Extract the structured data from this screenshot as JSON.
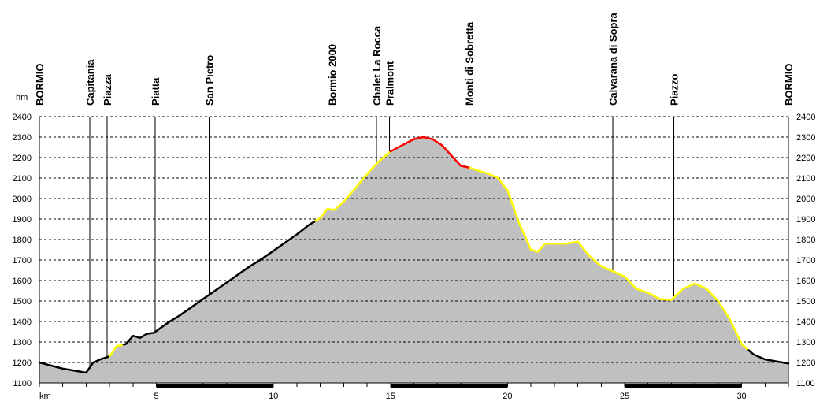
{
  "chart_data": {
    "type": "area",
    "ylabel": "hm",
    "xlabel": "km",
    "ylim": [
      1100,
      2400
    ],
    "xlim": [
      0,
      32
    ],
    "y_ticks": [
      1100,
      1200,
      1300,
      1400,
      1500,
      1600,
      1700,
      1800,
      1900,
      2000,
      2100,
      2200,
      2300,
      2400
    ],
    "x_ticks": [
      5,
      10,
      15,
      20,
      25,
      30
    ],
    "grid": true,
    "colors": {
      "area": "#c0c0c0",
      "road": "#000000",
      "easy": "#ffff00",
      "difficult": "#ff0000",
      "gridline": "#000000"
    },
    "profile": {
      "x": [
        0,
        0.5,
        1,
        1.5,
        2,
        2.3,
        2.6,
        3.0,
        3.3,
        3.7,
        4.0,
        4.3,
        4.6,
        4.9,
        5.2,
        5.5,
        6.0,
        6.5,
        7.0,
        7.5,
        8.0,
        8.5,
        9.0,
        9.5,
        10.0,
        10.5,
        11.0,
        11.5,
        12.0,
        12.3,
        12.6,
        13.0,
        13.5,
        14.0,
        14.5,
        15.0,
        15.5,
        16.0,
        16.4,
        16.8,
        17.2,
        17.6,
        18.0,
        18.4,
        18.8,
        19.2,
        19.6,
        20.0,
        20.5,
        21.0,
        21.3,
        21.6,
        22.0,
        22.5,
        23.0,
        23.5,
        24.0,
        24.5,
        25.0,
        25.5,
        26.0,
        26.5,
        27.0,
        27.5,
        28.0,
        28.5,
        29.0,
        29.5,
        30.0,
        30.5,
        31.0,
        31.5,
        32.0
      ],
      "y": [
        1200,
        1185,
        1170,
        1160,
        1150,
        1200,
        1215,
        1230,
        1280,
        1290,
        1330,
        1320,
        1340,
        1345,
        1370,
        1395,
        1430,
        1470,
        1510,
        1550,
        1590,
        1630,
        1670,
        1705,
        1745,
        1785,
        1825,
        1870,
        1905,
        1950,
        1945,
        1985,
        2050,
        2120,
        2180,
        2230,
        2260,
        2290,
        2300,
        2290,
        2260,
        2210,
        2160,
        2150,
        2135,
        2120,
        2100,
        2040,
        1880,
        1750,
        1740,
        1780,
        1780,
        1780,
        1790,
        1720,
        1670,
        1645,
        1620,
        1560,
        1540,
        1510,
        1505,
        1560,
        1585,
        1560,
        1500,
        1410,
        1290,
        1240,
        1215,
        1205,
        1195
      ]
    },
    "segments": [
      {
        "from": 0,
        "to": 3.0,
        "difficulty": "road"
      },
      {
        "from": 3.0,
        "to": 3.6,
        "difficulty": "easy"
      },
      {
        "from": 3.6,
        "to": 11.8,
        "difficulty": "road"
      },
      {
        "from": 11.8,
        "to": 15.0,
        "difficulty": "easy"
      },
      {
        "from": 15.0,
        "to": 18.4,
        "difficulty": "difficult"
      },
      {
        "from": 18.4,
        "to": 30.3,
        "difficulty": "easy"
      },
      {
        "from": 30.3,
        "to": 32.0,
        "difficulty": "road"
      }
    ],
    "waypoints": [
      {
        "name": "BORMIO",
        "km": 0
      },
      {
        "name": "Capitania",
        "km": 2.15
      },
      {
        "name": "Piazza",
        "km": 2.9
      },
      {
        "name": "Piatta",
        "km": 4.95
      },
      {
        "name": "San Pietro",
        "km": 7.25
      },
      {
        "name": "Bormio 2000",
        "km": 12.5
      },
      {
        "name": "Chalet La Rocca",
        "km": 14.4
      },
      {
        "name": "Pralmont",
        "km": 14.95
      },
      {
        "name": "Monti di Sobretta",
        "km": 18.35
      },
      {
        "name": "Calvarana di Sopra",
        "km": 24.5
      },
      {
        "name": "Piazzo",
        "km": 27.1
      },
      {
        "name": "BORMIO",
        "km": 32
      }
    ],
    "x_bar_segments": [
      [
        5,
        10
      ],
      [
        15,
        20
      ],
      [
        25,
        30
      ]
    ]
  }
}
